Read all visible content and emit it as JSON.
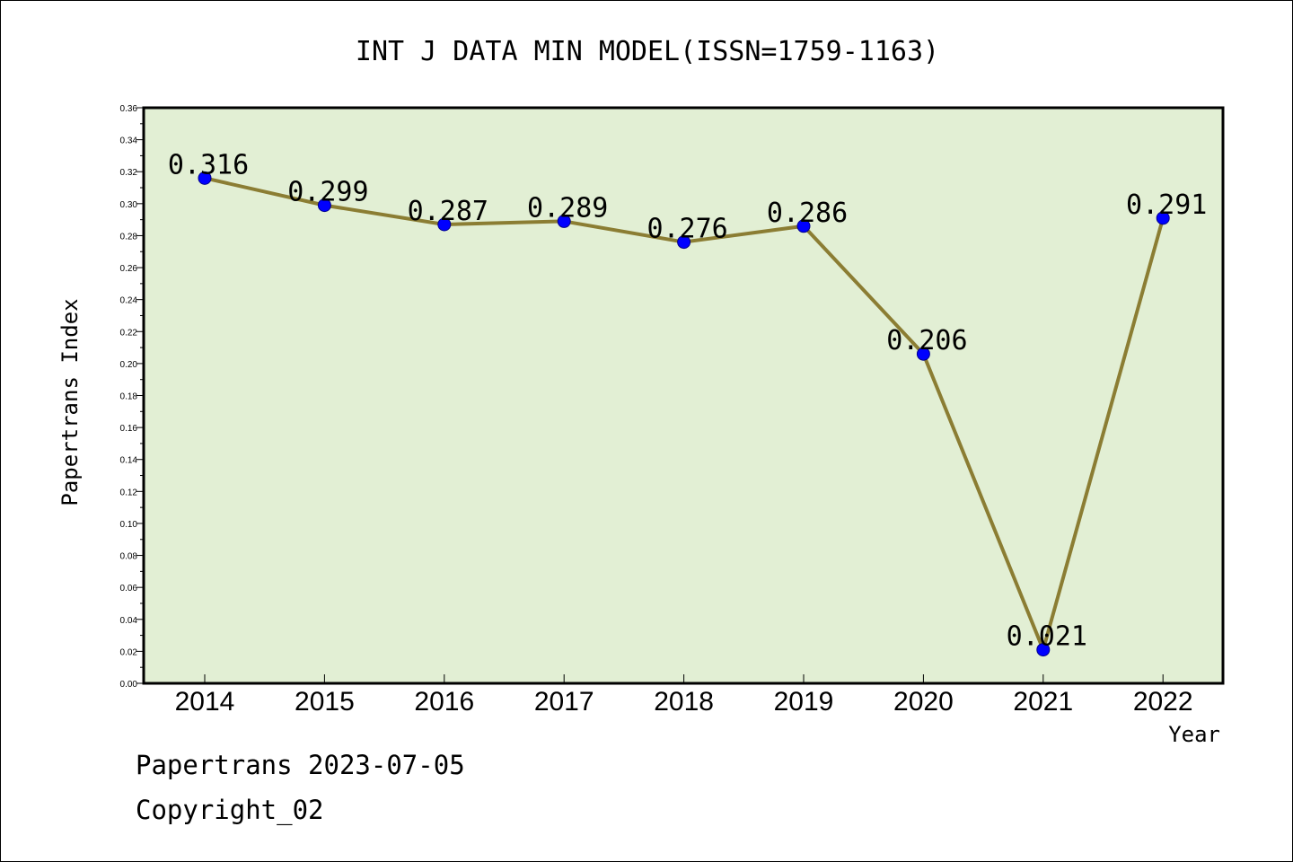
{
  "chart_data": {
    "type": "line",
    "title": "INT J DATA MIN MODEL(ISSN=1759-1163)",
    "xlabel": "Year",
    "ylabel": "Papertrans Index",
    "categories": [
      "2014",
      "2015",
      "2016",
      "2017",
      "2018",
      "2019",
      "2020",
      "2021",
      "2022"
    ],
    "series": [
      {
        "values": [
          0.316,
          0.299,
          0.287,
          0.289,
          0.276,
          0.286,
          0.206,
          0.021,
          0.291
        ],
        "data_labels": [
          "0.316",
          "0.299",
          "0.287",
          "0.289",
          "0.276",
          "0.286",
          "0.206",
          "0.021",
          "0.291"
        ]
      }
    ],
    "ylim": [
      0,
      0.36
    ],
    "yticks": [
      "0.00",
      "0.02",
      "0.04",
      "0.06",
      "0.08",
      "0.10",
      "0.12",
      "0.14",
      "0.16",
      "0.18",
      "0.20",
      "0.22",
      "0.24",
      "0.26",
      "0.28",
      "0.30",
      "0.32",
      "0.34",
      "0.36"
    ],
    "grid": false,
    "colors": {
      "plot_background": "#e2efd4",
      "line": "#8b7d33",
      "marker": "#0000ff"
    }
  },
  "footer": {
    "line1": "Papertrans 2023-07-05",
    "line2": "Copyright_02"
  }
}
